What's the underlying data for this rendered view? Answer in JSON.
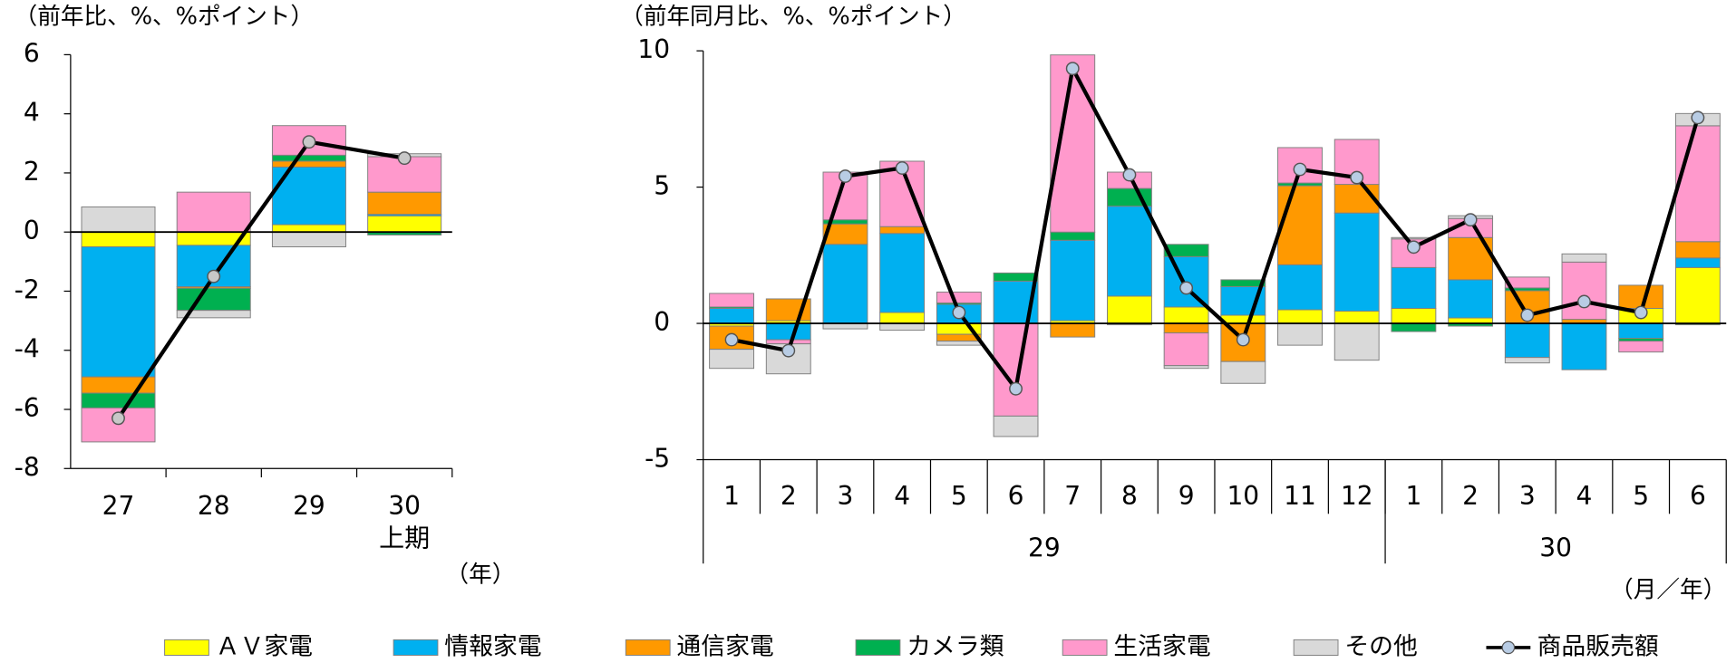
{
  "chart_data": [
    {
      "type": "bar_line",
      "y_unit_label": "（前年比、%、%ポイント）",
      "x_unit_label": "（年）",
      "categories": [
        "27",
        "28",
        "29",
        "30"
      ],
      "category_sublabels": [
        null,
        null,
        null,
        "上期"
      ],
      "ylim": [
        -8,
        6
      ],
      "yticks": [
        -8,
        -6,
        -4,
        -2,
        0,
        2,
        4,
        6
      ],
      "series": [
        {
          "name": "ＡＶ家電",
          "color": "#ffff00",
          "values": [
            -0.5,
            -0.45,
            0.25,
            0.55
          ]
        },
        {
          "name": "情報家電",
          "color": "#00b0f0",
          "values": [
            -4.4,
            -1.4,
            1.95,
            0.05
          ]
        },
        {
          "name": "通信家電",
          "color": "#ff9900",
          "values": [
            -0.55,
            -0.05,
            0.2,
            0.75
          ]
        },
        {
          "name": "カメラ類",
          "color": "#00b050",
          "values": [
            -0.5,
            -0.75,
            0.2,
            -0.1
          ]
        },
        {
          "name": "生活家電",
          "color": "#ff99cc",
          "values": [
            -1.15,
            1.35,
            1.0,
            1.2
          ]
        },
        {
          "name": "その他",
          "color": "#d9d9d9",
          "values": [
            0.85,
            -0.25,
            -0.5,
            0.1
          ]
        },
        {
          "name": "商品販売額",
          "type": "line",
          "color": "#000000",
          "marker_color": "#c8c8c8",
          "values": [
            -6.3,
            -1.5,
            3.05,
            2.5
          ]
        }
      ]
    },
    {
      "type": "bar_line",
      "y_unit_label": "（前年同月比、%、%ポイント）",
      "x_unit_label": "（月／年）",
      "categories": [
        "1",
        "2",
        "3",
        "4",
        "5",
        "6",
        "7",
        "8",
        "9",
        "10",
        "11",
        "12",
        "1",
        "2",
        "3",
        "4",
        "5",
        "6"
      ],
      "groups": [
        {
          "label": "29",
          "span": 12
        },
        {
          "label": "30",
          "span": 6
        }
      ],
      "ylim": [
        -5,
        10
      ],
      "yticks": [
        -5,
        0,
        5,
        10
      ],
      "series": [
        {
          "name": "ＡＶ家電",
          "color": "#ffff00",
          "values": [
            -0.1,
            0.1,
            0,
            0.4,
            -0.4,
            0,
            0.1,
            1.0,
            0.6,
            0.3,
            0.5,
            0.45,
            0.55,
            0.2,
            0,
            0,
            0.55,
            2.05
          ]
        },
        {
          "name": "情報家電",
          "color": "#00b0f0",
          "values": [
            0.55,
            -0.6,
            2.9,
            2.9,
            0.7,
            1.55,
            2.95,
            3.3,
            1.85,
            1.05,
            1.65,
            3.6,
            1.5,
            1.4,
            -1.25,
            -1.7,
            -0.55,
            0.35
          ]
        },
        {
          "name": "通信家電",
          "color": "#ff9900",
          "values": [
            -0.85,
            0.8,
            0.75,
            0.25,
            -0.25,
            0,
            -0.5,
            0,
            -0.35,
            -1.4,
            2.9,
            1.05,
            0,
            1.55,
            1.2,
            0.15,
            0.85,
            0.6
          ]
        },
        {
          "name": "カメラ類",
          "color": "#00b050",
          "values": [
            0.05,
            0,
            0.15,
            0,
            0.05,
            0.3,
            0.3,
            0.65,
            0.45,
            0.25,
            0.1,
            0,
            -0.3,
            -0.1,
            0.1,
            0,
            -0.1,
            -0.05
          ]
        },
        {
          "name": "生活家電",
          "color": "#ff99cc",
          "values": [
            0.5,
            -0.15,
            1.75,
            2.4,
            0.4,
            -3.4,
            6.5,
            0.6,
            -1.2,
            0,
            1.3,
            1.65,
            1.05,
            0.7,
            0.4,
            2.1,
            -0.4,
            4.25
          ]
        },
        {
          "name": "その他",
          "color": "#d9d9d9",
          "values": [
            -0.7,
            -1.1,
            -0.2,
            -0.25,
            -0.15,
            -0.75,
            0,
            -0.05,
            -0.1,
            -0.8,
            -0.8,
            -1.35,
            0.05,
            0.1,
            -0.2,
            0.3,
            0,
            0.45
          ]
        },
        {
          "name": "商品販売額",
          "type": "line",
          "color": "#000000",
          "marker_color": "#b8cce4",
          "values": [
            -0.6,
            -1.0,
            5.4,
            5.7,
            0.4,
            -2.4,
            9.35,
            5.45,
            1.3,
            -0.6,
            5.65,
            5.35,
            2.8,
            3.8,
            0.3,
            0.8,
            0.4,
            7.55
          ]
        }
      ]
    }
  ]
}
